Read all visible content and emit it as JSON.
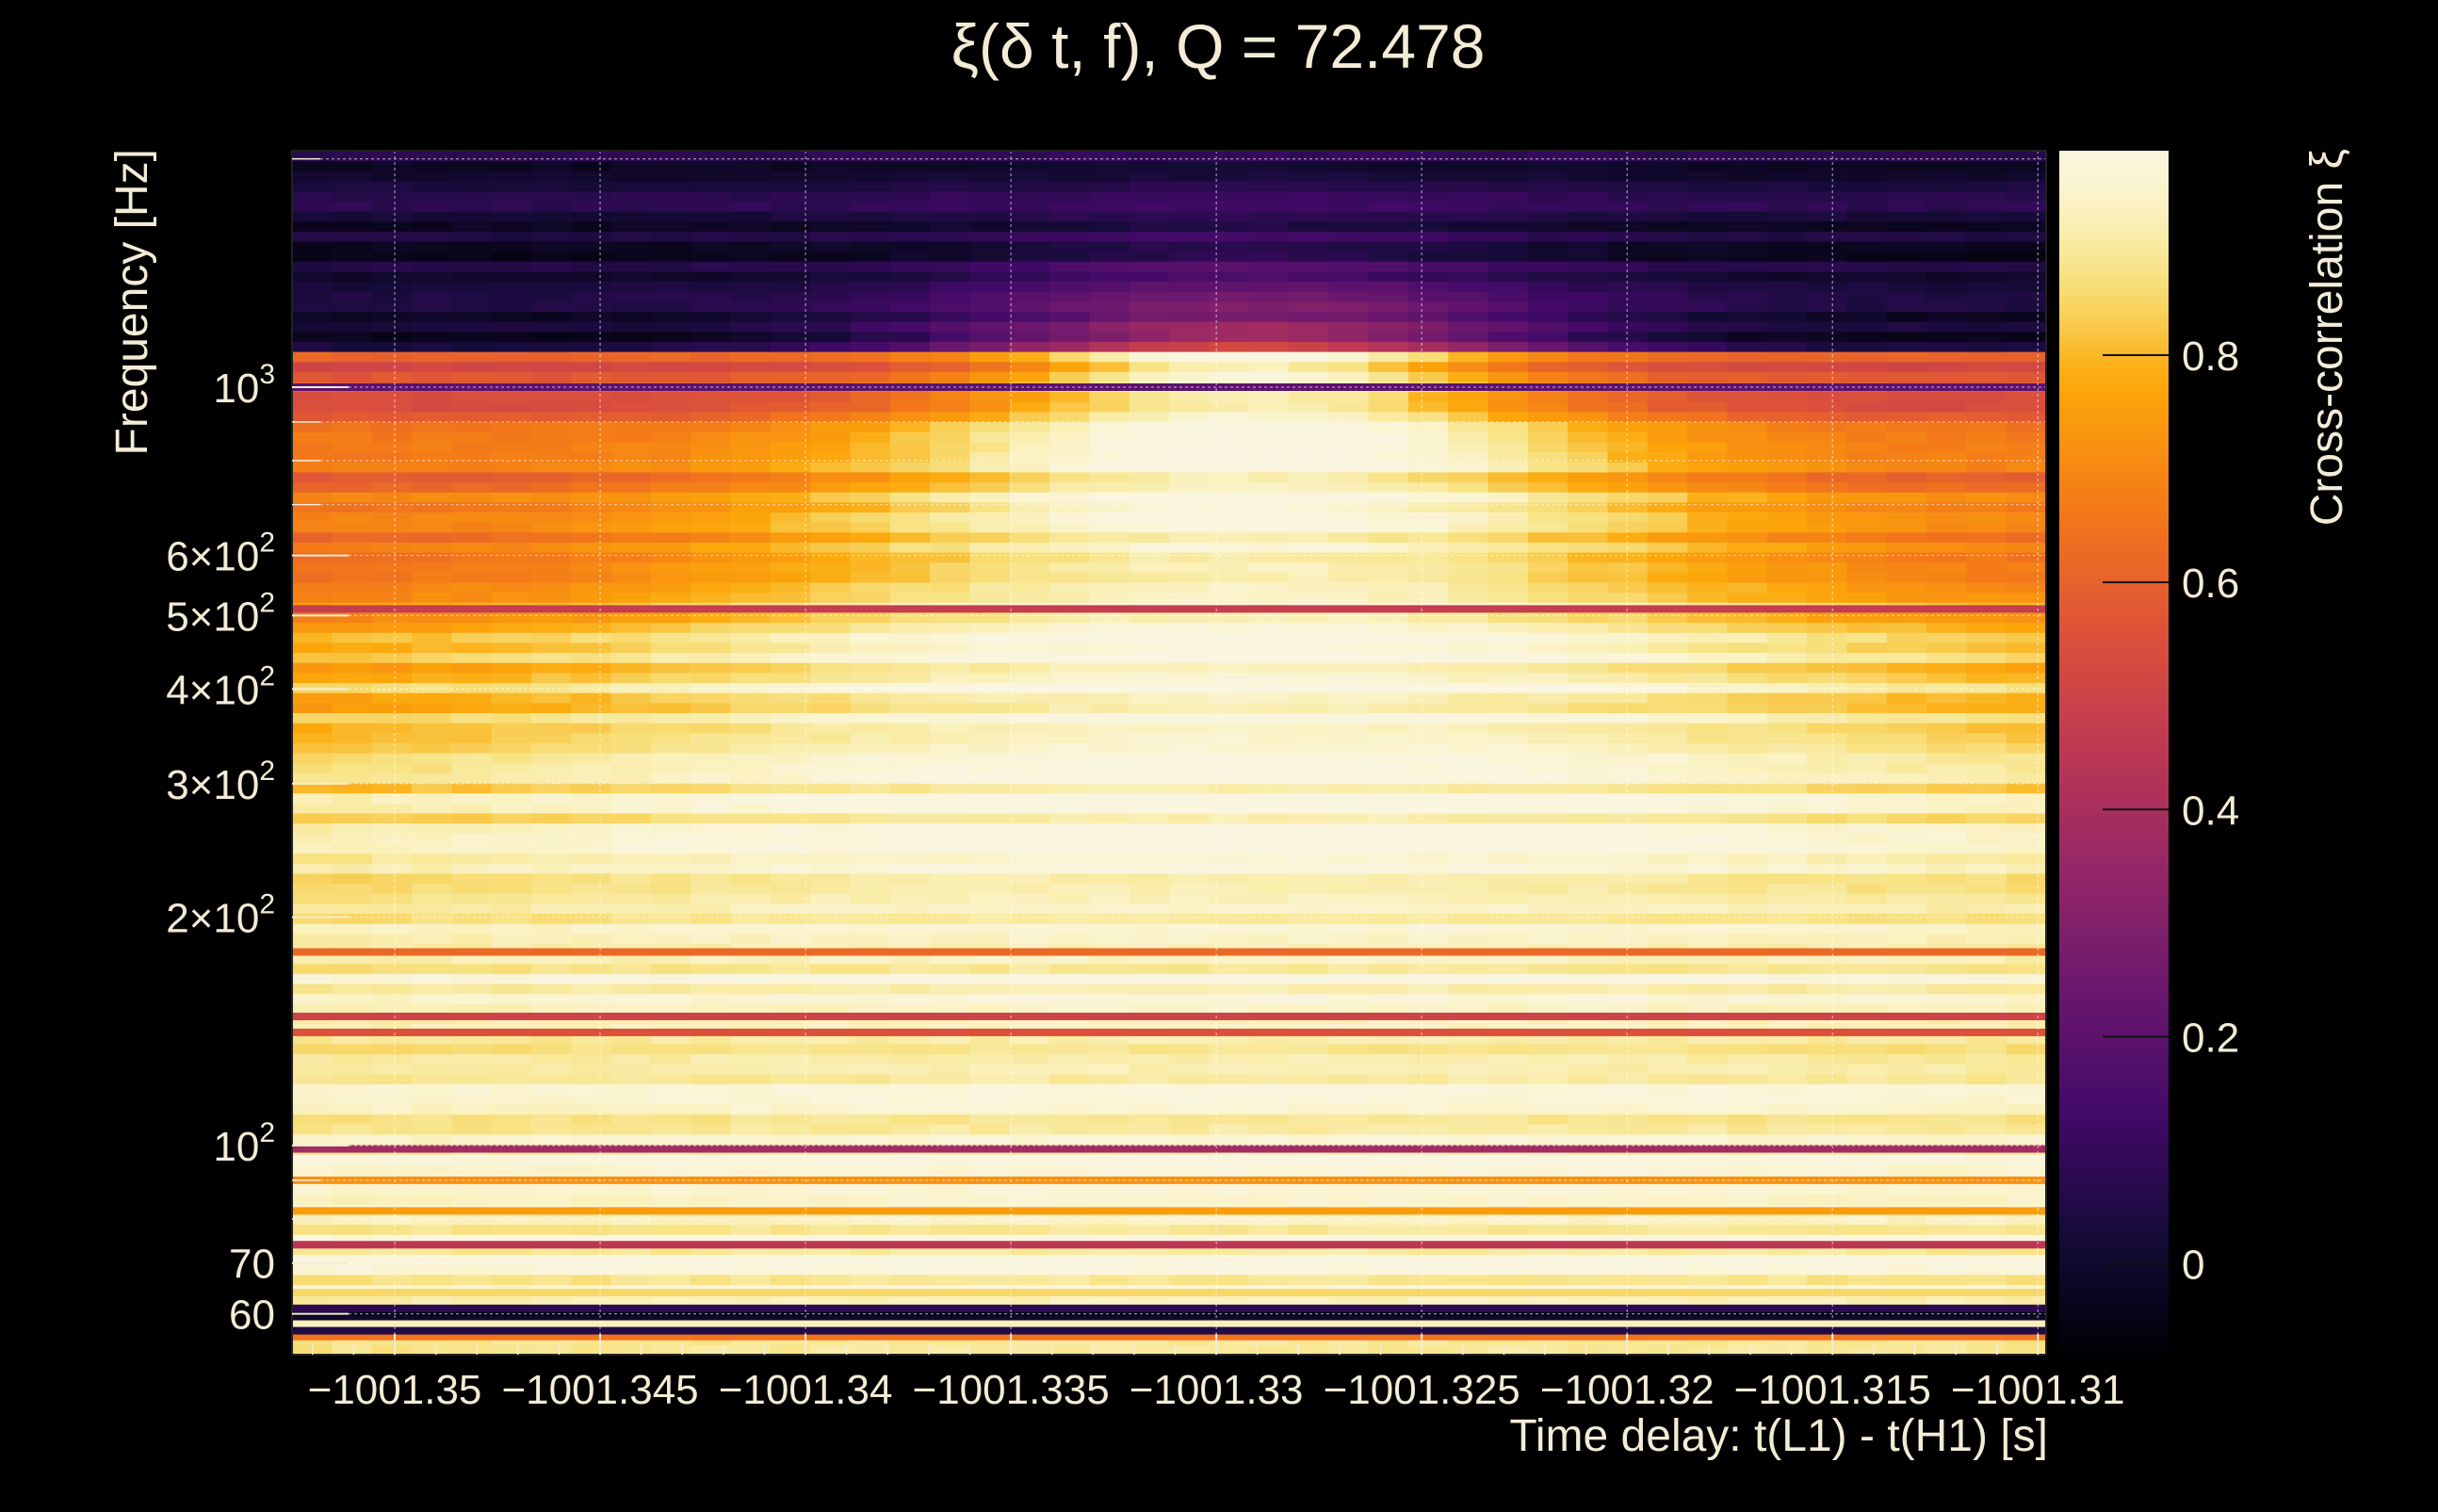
{
  "chart_data": {
    "type": "heatmap",
    "title": "ξ(δ t, f), Q = 72.478",
    "xlabel": "Time delay: t(L1) - t(H1) [s]",
    "ylabel": "Frequency [Hz]",
    "colorbar_label": "Cross-correlation ξ",
    "colormap": "inferno",
    "xlim": [
      -1001.3525,
      -1001.3098
    ],
    "ylim": [
      53,
      2050
    ],
    "yscale": "log",
    "zlim": [
      -0.08,
      0.98
    ],
    "grid": true,
    "x_ticks": [
      {
        "value": -1001.35,
        "label": "−1001.35"
      },
      {
        "value": -1001.345,
        "label": "−1001.345"
      },
      {
        "value": -1001.34,
        "label": "−1001.34"
      },
      {
        "value": -1001.335,
        "label": "−1001.335"
      },
      {
        "value": -1001.33,
        "label": "−1001.33"
      },
      {
        "value": -1001.325,
        "label": "−1001.325"
      },
      {
        "value": -1001.32,
        "label": "−1001.32"
      },
      {
        "value": -1001.315,
        "label": "−1001.315"
      },
      {
        "value": -1001.31,
        "label": "−1001.31"
      }
    ],
    "y_ticks": [
      {
        "value": 60,
        "label": "60"
      },
      {
        "value": 70,
        "label": "70"
      },
      {
        "value": 100,
        "label": "10",
        "sup": "2"
      },
      {
        "value": 200,
        "label": "2×10",
        "sup": "2"
      },
      {
        "value": 300,
        "label": "3×10",
        "sup": "2"
      },
      {
        "value": 400,
        "label": "4×10",
        "sup": "2"
      },
      {
        "value": 500,
        "label": "5×10",
        "sup": "2"
      },
      {
        "value": 600,
        "label": "6×10",
        "sup": "2"
      },
      {
        "value": 1000,
        "label": "10",
        "sup": "3"
      }
    ],
    "y_minor_ticks": [
      80,
      90,
      700,
      800,
      900,
      2000
    ],
    "colorbar_ticks": [
      {
        "value": 0,
        "label": "0"
      },
      {
        "value": 0.2,
        "label": "0.2"
      },
      {
        "value": 0.4,
        "label": "0.4"
      },
      {
        "value": 0.6,
        "label": "0.6"
      },
      {
        "value": 0.8,
        "label": "0.8"
      }
    ],
    "field": {
      "peak_time": -1001.3292,
      "peak_frequency": 300,
      "peak_value": 0.97,
      "low_freq_floor": 0.88,
      "high_freq_cutoff": 1100
    },
    "horizontal_lines": [
      {
        "freq": 56,
        "value": 0.65
      },
      {
        "freq": 57,
        "value": 0.05
      },
      {
        "freq": 58.5,
        "value": 0.92
      },
      {
        "freq": 59.5,
        "value": 0.0
      },
      {
        "freq": 60.3,
        "value": -0.05
      },
      {
        "freq": 61,
        "value": 0.08
      },
      {
        "freq": 64,
        "value": 0.85
      },
      {
        "freq": 74,
        "value": 0.45
      },
      {
        "freq": 82,
        "value": 0.75
      },
      {
        "freq": 90,
        "value": 0.72
      },
      {
        "freq": 99,
        "value": 0.38
      },
      {
        "freq": 141,
        "value": 0.55
      },
      {
        "freq": 148,
        "value": 0.5
      },
      {
        "freq": 180,
        "value": 0.62
      },
      {
        "freq": 510,
        "value": 0.48
      },
      {
        "freq": 1000,
        "value": 0.2
      }
    ]
  }
}
